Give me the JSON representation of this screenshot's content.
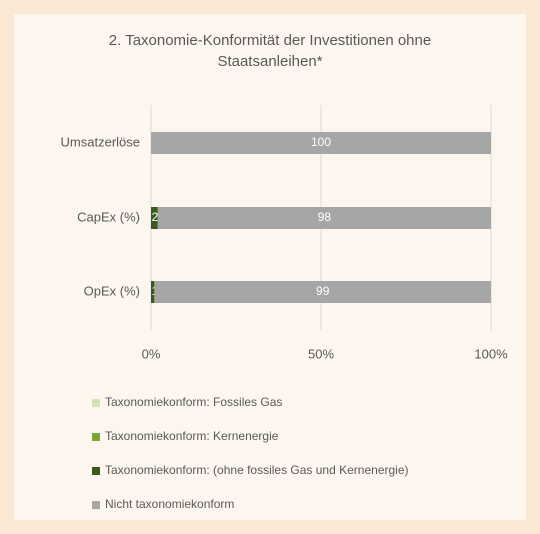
{
  "chart_data": {
    "type": "stacked-bar-horizontal",
    "title": "2. Taxonomie-Konformität der Investitionen ohne Staatsanleihen*",
    "categories": [
      "Umsatzerlöse",
      "CapEx (%)",
      "OpEx (%)"
    ],
    "series": [
      {
        "name": "Taxonomiekonform: Fossiles Gas",
        "color": "#d5e3b0",
        "values": [
          0,
          0,
          0
        ]
      },
      {
        "name": "Taxonomiekonform: Kernenergie",
        "color": "#7aa53a",
        "values": [
          0,
          0,
          0
        ]
      },
      {
        "name": "Taxonomiekonform: (ohne fossiles Gas und Kernenergie)",
        "color": "#3b5a1c",
        "values": [
          0,
          2,
          1
        ]
      },
      {
        "name": "Nicht taxonomiekonform",
        "color": "#a6a6a6",
        "values": [
          100,
          98,
          99
        ]
      }
    ],
    "xlim": [
      0,
      100
    ],
    "xticks": [
      {
        "value": 0,
        "label": "0%"
      },
      {
        "value": 50,
        "label": "50%"
      },
      {
        "value": 100,
        "label": "100%"
      }
    ],
    "grid": true
  }
}
